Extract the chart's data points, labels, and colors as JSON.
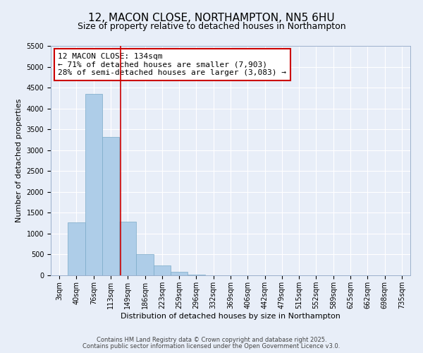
{
  "title": "12, MACON CLOSE, NORTHAMPTON, NN5 6HU",
  "subtitle": "Size of property relative to detached houses in Northampton",
  "xlabel": "Distribution of detached houses by size in Northampton",
  "ylabel": "Number of detached properties",
  "bar_labels": [
    "3sqm",
    "40sqm",
    "76sqm",
    "113sqm",
    "149sqm",
    "186sqm",
    "223sqm",
    "259sqm",
    "296sqm",
    "332sqm",
    "369sqm",
    "406sqm",
    "442sqm",
    "479sqm",
    "515sqm",
    "552sqm",
    "589sqm",
    "625sqm",
    "662sqm",
    "698sqm",
    "735sqm"
  ],
  "bar_values": [
    0,
    1270,
    4350,
    3320,
    1280,
    500,
    230,
    80,
    20,
    5,
    2,
    1,
    0,
    0,
    0,
    0,
    0,
    0,
    0,
    0,
    0
  ],
  "bar_color": "#aecde8",
  "bar_edge_color": "#7aaac8",
  "ylim": [
    0,
    5500
  ],
  "yticks": [
    0,
    500,
    1000,
    1500,
    2000,
    2500,
    3000,
    3500,
    4000,
    4500,
    5000,
    5500
  ],
  "marker_label": "12 MACON CLOSE: 134sqm",
  "annotation_line1": "← 71% of detached houses are smaller (7,903)",
  "annotation_line2": "28% of semi-detached houses are larger (3,083) →",
  "annotation_box_color": "#ffffff",
  "annotation_box_edge": "#cc0000",
  "marker_line_color": "#cc0000",
  "background_color": "#e8eef8",
  "grid_color": "#ffffff",
  "footer_line1": "Contains HM Land Registry data © Crown copyright and database right 2025.",
  "footer_line2": "Contains public sector information licensed under the Open Government Licence v3.0.",
  "title_fontsize": 11,
  "subtitle_fontsize": 9,
  "axis_label_fontsize": 8,
  "tick_fontsize": 7,
  "annotation_fontsize": 8,
  "footer_fontsize": 6
}
